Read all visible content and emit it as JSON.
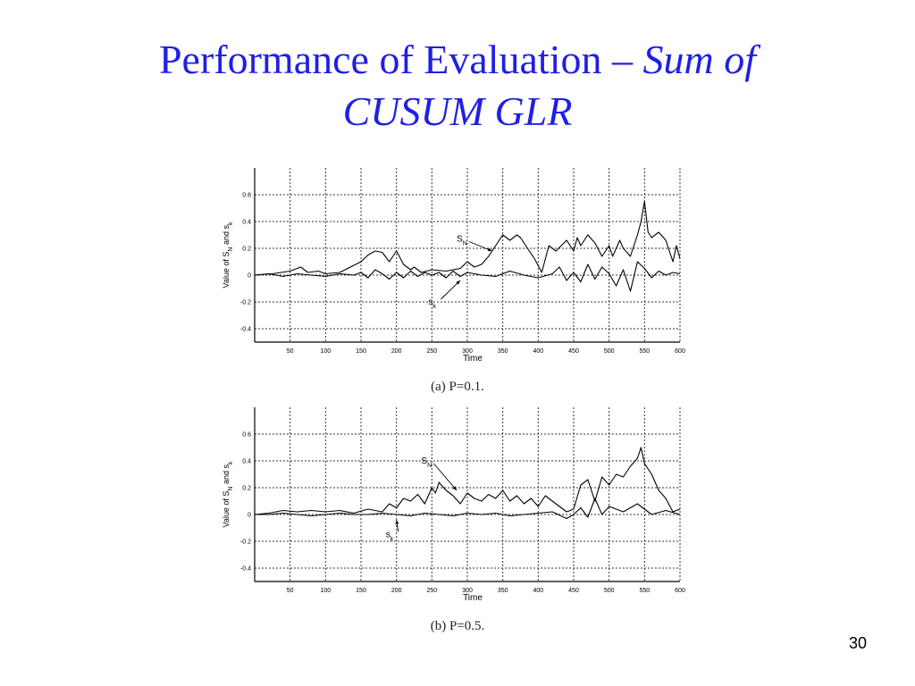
{
  "slide": {
    "title_plain": "Performance of Evaluation – ",
    "title_italic_1": "Sum of",
    "title_italic_2": "CUSUM GLR",
    "page_number": "30"
  },
  "colors": {
    "title": "#1f1fe6",
    "line": "#000000",
    "grid": "#333333"
  },
  "chart_data": [
    {
      "type": "line",
      "caption": "(a)  P=0.1.",
      "xlabel": "Time",
      "ylabel": "Value of S_N and s_k",
      "xlim": [
        0,
        600
      ],
      "ylim": [
        -0.5,
        0.8
      ],
      "xticks": [
        50,
        100,
        150,
        200,
        250,
        300,
        350,
        400,
        450,
        500,
        550,
        600
      ],
      "yticks": [
        -0.4,
        -0.2,
        0,
        0.2,
        0.4,
        0.6
      ],
      "grid": true,
      "annotations": [
        {
          "label_main": "S",
          "label_sub": "N",
          "x": 285,
          "y": 0.25,
          "arrow_to_x": 335,
          "arrow_to_y": 0.18
        },
        {
          "label_main": "s",
          "label_sub": "k",
          "x": 245,
          "y": -0.22,
          "arrow_to_x": 290,
          "arrow_to_y": -0.04
        }
      ],
      "series": [
        {
          "x": [
            0,
            25,
            50,
            65,
            75,
            90,
            100,
            120,
            135,
            150,
            160,
            170,
            180,
            190,
            200,
            210,
            220,
            225,
            235,
            250,
            270,
            290,
            300,
            310,
            320,
            330,
            340,
            350,
            360,
            370,
            375,
            385,
            395,
            405,
            410,
            415,
            425,
            440,
            450,
            455,
            460,
            470,
            480,
            490,
            500,
            505,
            510,
            515,
            520,
            530,
            540,
            545,
            550,
            555,
            560,
            570,
            580,
            590,
            595,
            600
          ],
          "y": [
            0.0,
            0.01,
            0.03,
            0.06,
            0.02,
            0.03,
            0.01,
            0.02,
            0.06,
            0.1,
            0.15,
            0.18,
            0.17,
            0.1,
            0.18,
            0.08,
            0.04,
            0.06,
            0.02,
            0.04,
            0.03,
            0.05,
            0.1,
            0.06,
            0.08,
            0.14,
            0.22,
            0.3,
            0.26,
            0.3,
            0.28,
            0.2,
            0.12,
            0.02,
            0.12,
            0.22,
            0.18,
            0.26,
            0.18,
            0.28,
            0.22,
            0.3,
            0.24,
            0.14,
            0.22,
            0.14,
            0.2,
            0.26,
            0.2,
            0.14,
            0.3,
            0.4,
            0.55,
            0.32,
            0.28,
            0.32,
            0.26,
            0.1,
            0.22,
            0.12
          ]
        },
        {
          "x": [
            0,
            20,
            40,
            60,
            80,
            100,
            120,
            140,
            150,
            160,
            170,
            180,
            190,
            200,
            210,
            220,
            230,
            240,
            250,
            260,
            270,
            280,
            290,
            300,
            320,
            340,
            360,
            380,
            400,
            420,
            430,
            440,
            450,
            460,
            470,
            480,
            490,
            500,
            510,
            520,
            530,
            540,
            550,
            560,
            570,
            580,
            590,
            600
          ],
          "y": [
            0.0,
            0.01,
            -0.01,
            0.01,
            0.0,
            -0.01,
            0.01,
            0.0,
            0.02,
            -0.02,
            0.04,
            0.01,
            -0.03,
            0.02,
            -0.02,
            0.03,
            -0.01,
            0.02,
            0.0,
            0.02,
            -0.02,
            0.03,
            -0.01,
            0.02,
            0.0,
            -0.01,
            0.03,
            0.0,
            -0.02,
            0.01,
            0.06,
            -0.04,
            0.02,
            -0.05,
            0.08,
            -0.03,
            0.06,
            0.01,
            -0.08,
            0.04,
            -0.12,
            0.1,
            0.05,
            -0.02,
            0.03,
            0.0,
            0.02,
            0.01
          ]
        }
      ]
    },
    {
      "type": "line",
      "caption": "(b)  P=0.5.",
      "xlabel": "Time",
      "ylabel": "Value of S_N and s_k",
      "xlim": [
        0,
        600
      ],
      "ylim": [
        -0.5,
        0.8
      ],
      "xticks": [
        50,
        100,
        150,
        200,
        250,
        300,
        350,
        400,
        450,
        500,
        550,
        600
      ],
      "yticks": [
        -0.4,
        -0.2,
        0,
        0.2,
        0.4,
        0.6
      ],
      "grid": true,
      "annotations": [
        {
          "label_main": "S",
          "label_sub": "N",
          "x": 235,
          "y": 0.38,
          "arrow_to_x": 285,
          "arrow_to_y": 0.18
        },
        {
          "label_main": "s",
          "label_sub": "k",
          "x": 185,
          "y": -0.17,
          "arrow_to_x": 200,
          "arrow_to_y": -0.04
        }
      ],
      "series": [
        {
          "x": [
            0,
            20,
            40,
            60,
            80,
            100,
            120,
            140,
            160,
            180,
            190,
            200,
            210,
            220,
            230,
            240,
            250,
            255,
            260,
            270,
            280,
            290,
            300,
            310,
            320,
            330,
            340,
            350,
            360,
            370,
            380,
            390,
            400,
            410,
            420,
            430,
            440,
            450,
            460,
            470,
            480,
            490,
            500,
            510,
            520,
            530,
            540,
            545,
            550,
            560,
            570,
            580,
            590,
            600
          ],
          "y": [
            0.0,
            0.01,
            0.03,
            0.02,
            0.03,
            0.02,
            0.03,
            0.01,
            0.04,
            0.02,
            0.08,
            0.05,
            0.12,
            0.1,
            0.15,
            0.08,
            0.2,
            0.16,
            0.24,
            0.18,
            0.14,
            0.08,
            0.16,
            0.12,
            0.1,
            0.15,
            0.12,
            0.18,
            0.1,
            0.14,
            0.08,
            0.12,
            0.06,
            0.14,
            0.1,
            0.06,
            0.02,
            0.04,
            0.22,
            0.26,
            0.1,
            0.28,
            0.22,
            0.3,
            0.28,
            0.36,
            0.42,
            0.5,
            0.38,
            0.3,
            0.18,
            0.12,
            0.02,
            0.04
          ]
        },
        {
          "x": [
            0,
            20,
            40,
            60,
            80,
            100,
            120,
            140,
            160,
            180,
            200,
            220,
            240,
            260,
            280,
            300,
            320,
            340,
            360,
            380,
            400,
            420,
            440,
            450,
            460,
            470,
            480,
            490,
            500,
            520,
            540,
            560,
            580,
            600
          ],
          "y": [
            0.0,
            0.0,
            0.01,
            0.0,
            -0.01,
            0.0,
            0.01,
            0.0,
            0.0,
            0.01,
            0.0,
            -0.01,
            0.01,
            0.0,
            -0.01,
            0.01,
            0.0,
            0.01,
            -0.01,
            0.0,
            0.01,
            0.02,
            -0.03,
            0.0,
            0.05,
            -0.02,
            0.12,
            0.0,
            0.06,
            0.02,
            0.08,
            0.0,
            0.03,
            0.0
          ]
        }
      ]
    }
  ]
}
